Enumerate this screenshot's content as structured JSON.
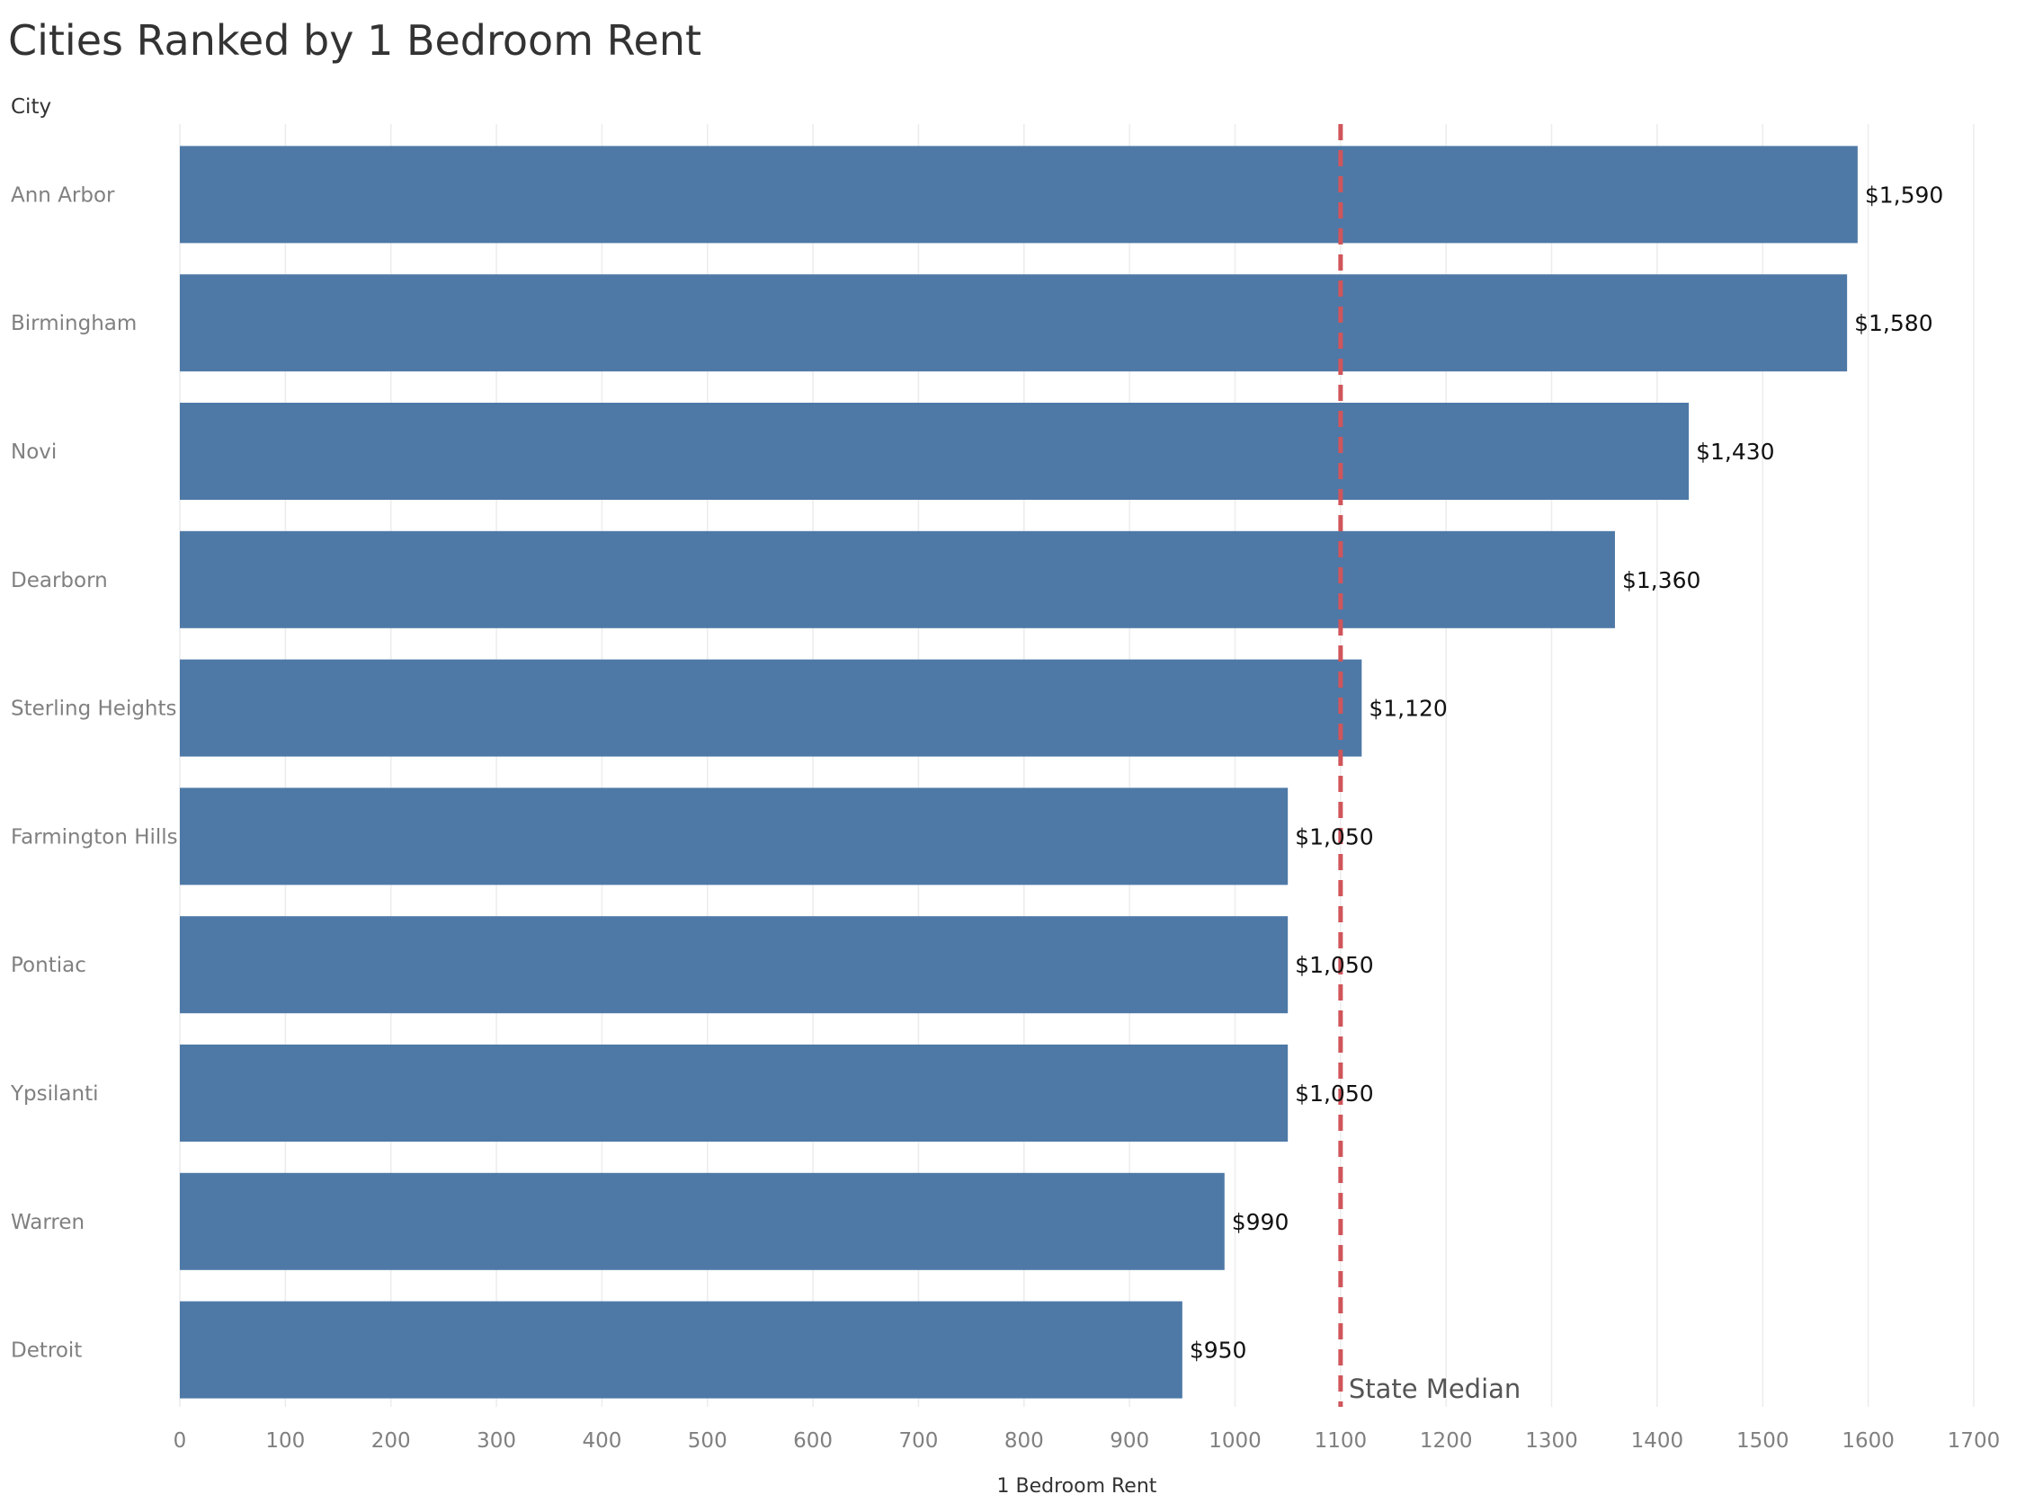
{
  "chart_data": {
    "type": "bar",
    "orientation": "horizontal",
    "title": "Cities Ranked by 1 Bedroom Rent",
    "row_header": "City",
    "xlabel": "1 Bedroom Rent",
    "categories": [
      "Ann Arbor",
      "Birmingham",
      "Novi",
      "Dearborn",
      "Sterling Heights",
      "Farmington Hills",
      "Pontiac",
      "Ypsilanti",
      "Warren",
      "Detroit"
    ],
    "values": [
      1590,
      1580,
      1430,
      1360,
      1120,
      1050,
      1050,
      1050,
      990,
      950
    ],
    "value_labels": [
      "$1,590",
      "$1,580",
      "$1,430",
      "$1,360",
      "$1,120",
      "$1,050",
      "$1,050",
      "$1,050",
      "$990",
      "$950"
    ],
    "xlim": [
      0,
      1700
    ],
    "xticks": [
      "0",
      "100",
      "200",
      "300",
      "400",
      "500",
      "600",
      "700",
      "800",
      "900",
      "1000",
      "1100",
      "1200",
      "1300",
      "1400",
      "1500",
      "1600",
      "1700"
    ],
    "grid": true,
    "reference_line": {
      "value": 1100,
      "label": "State Median",
      "color": "#d0555a",
      "style": "dashed"
    },
    "bar_color": "#4e79a7",
    "grid_color": "#ececec"
  }
}
